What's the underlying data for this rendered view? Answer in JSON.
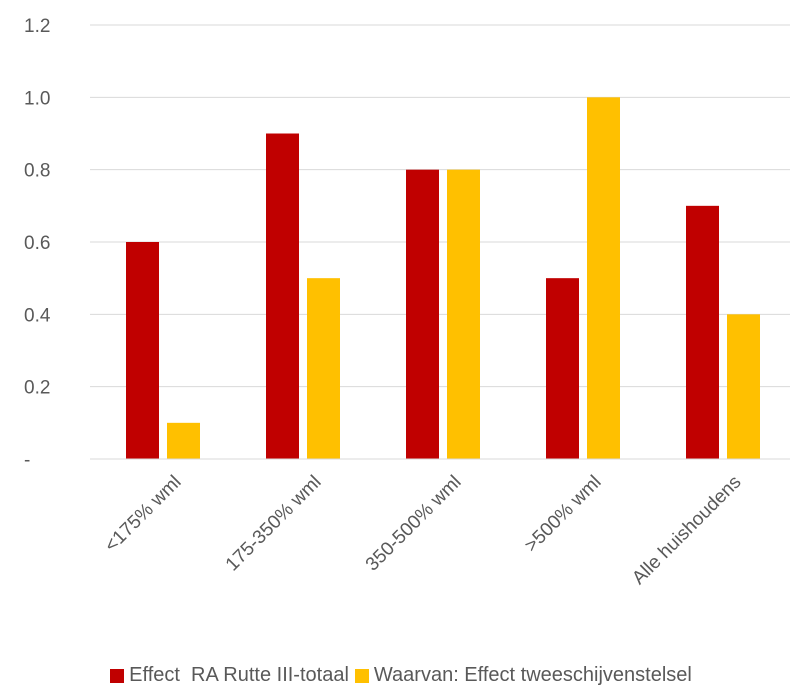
{
  "chart_data": {
    "type": "bar",
    "categories": [
      "<175% wml",
      "175-350% wml",
      "350-500% wml",
      ">500% wml",
      "Alle huishoudens"
    ],
    "series": [
      {
        "name": "Effect  RA Rutte III-totaal",
        "color": "#C00000",
        "values": [
          0.6,
          0.9,
          0.8,
          0.5,
          0.7
        ]
      },
      {
        "name": "Waarvan: Effect tweeschijvenstelsel",
        "color": "#FFC000",
        "values": [
          0.1,
          0.5,
          0.8,
          1.0,
          0.4
        ]
      }
    ],
    "ylim": [
      0,
      1.2
    ],
    "yticks": [
      0,
      0.2,
      0.4,
      0.6,
      0.8,
      1.0,
      1.2
    ],
    "ytick_labels": [
      "-",
      "0.2",
      "0.4",
      "0.6",
      "0.8",
      "1.0",
      "1.2"
    ],
    "grid": true,
    "legend_position": "bottom",
    "title": "",
    "xlabel": "",
    "ylabel": ""
  }
}
